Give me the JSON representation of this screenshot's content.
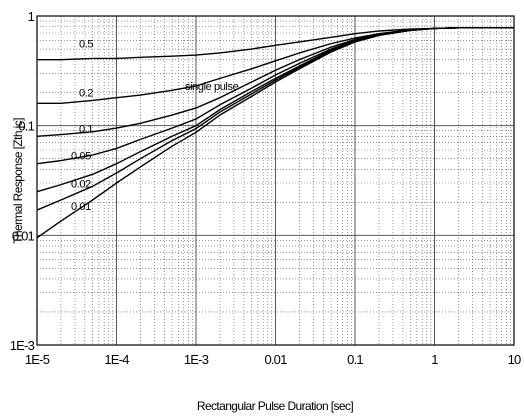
{
  "chart_data": {
    "type": "line",
    "xlabel": "Rectangular Pulse Duration [sec]",
    "ylabel": "Thermal Response [Zth jc]",
    "x_scale": "log",
    "y_scale": "log",
    "xlim": [
      1e-05,
      10
    ],
    "ylim": [
      0.001,
      1
    ],
    "grid": true,
    "x_ticks": [
      "1E-5",
      "1E-4",
      "1E-3",
      "0.01",
      "0.1",
      "1",
      "10"
    ],
    "y_ticks": [
      "1E-3",
      "0.01",
      "0.1",
      "1"
    ],
    "x_tick_values": [
      1e-05,
      0.0001,
      0.001,
      0.01,
      0.1,
      1,
      10
    ],
    "y_tick_values": [
      0.001,
      0.01,
      0.1,
      1
    ],
    "x": [
      1e-05,
      2e-05,
      5e-05,
      0.0001,
      0.0002,
      0.0005,
      0.001,
      0.002,
      0.005,
      0.01,
      0.02,
      0.05,
      0.1,
      0.2,
      0.5,
      1,
      2,
      5,
      10
    ],
    "series": [
      {
        "name": "0.5",
        "values": [
          0.4,
          0.4,
          0.41,
          0.41,
          0.42,
          0.43,
          0.44,
          0.46,
          0.5,
          0.54,
          0.58,
          0.64,
          0.69,
          0.73,
          0.76,
          0.77,
          0.78,
          0.78,
          0.78
        ]
      },
      {
        "name": "0.2",
        "values": [
          0.16,
          0.16,
          0.17,
          0.18,
          0.19,
          0.21,
          0.23,
          0.27,
          0.33,
          0.39,
          0.46,
          0.56,
          0.63,
          0.69,
          0.75,
          0.77,
          0.78,
          0.78,
          0.78
        ]
      },
      {
        "name": "0.1",
        "values": [
          0.08,
          0.083,
          0.088,
          0.095,
          0.105,
          0.125,
          0.145,
          0.18,
          0.25,
          0.32,
          0.4,
          0.52,
          0.61,
          0.68,
          0.74,
          0.77,
          0.78,
          0.78,
          0.78
        ]
      },
      {
        "name": "0.05",
        "values": [
          0.045,
          0.048,
          0.054,
          0.062,
          0.075,
          0.095,
          0.115,
          0.155,
          0.22,
          0.29,
          0.37,
          0.5,
          0.6,
          0.68,
          0.74,
          0.77,
          0.78,
          0.78,
          0.78
        ]
      },
      {
        "name": "0.02",
        "values": [
          0.025,
          0.029,
          0.036,
          0.045,
          0.058,
          0.08,
          0.1,
          0.14,
          0.205,
          0.27,
          0.35,
          0.49,
          0.59,
          0.67,
          0.74,
          0.77,
          0.78,
          0.78,
          0.78
        ]
      },
      {
        "name": "0.01",
        "values": [
          0.017,
          0.021,
          0.028,
          0.037,
          0.05,
          0.073,
          0.094,
          0.133,
          0.195,
          0.26,
          0.34,
          0.48,
          0.585,
          0.67,
          0.74,
          0.77,
          0.78,
          0.78,
          0.78
        ]
      },
      {
        "name": "single pulse",
        "values": [
          0.0095,
          0.0135,
          0.021,
          0.03,
          0.042,
          0.065,
          0.087,
          0.125,
          0.185,
          0.25,
          0.33,
          0.47,
          0.58,
          0.665,
          0.74,
          0.77,
          0.78,
          0.78,
          0.78
        ]
      }
    ]
  }
}
